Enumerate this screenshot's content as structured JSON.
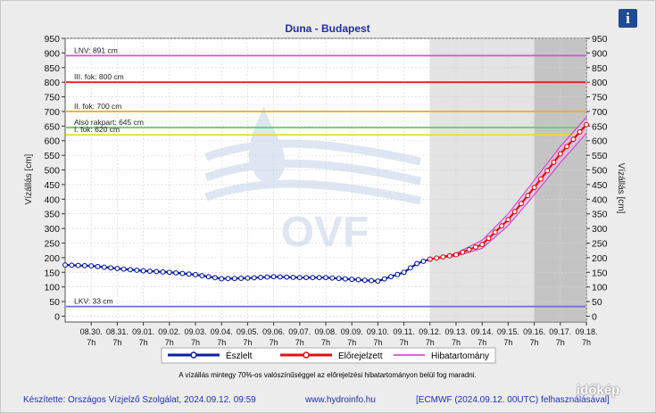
{
  "title": "Duna - Budapest",
  "ylabel_left": "Vízállás [cm]",
  "ylabel_right": "Vízállás [cm]",
  "note": "A vízállás mintegy 70%-os valószínűséggel az előrejelzési hibatartományon belül fog maradni.",
  "footer": {
    "left": "Készítette: Országos Vízjelző Szolgálat, 2024.09.12. 09:59",
    "middle": "www.hydroinfo.hu",
    "right": "[ECMWF (2024.09.12. 00UTC) felhasználásával]"
  },
  "credit": "időkép",
  "info_icon": "i",
  "watermark": "OVF",
  "legend": [
    {
      "label": "Észlelt",
      "color": "#0a1fa0"
    },
    {
      "label": "Előrejelzett",
      "color": "#e01010"
    },
    {
      "label": "Hibatartomány",
      "color": "#cc33cc"
    }
  ],
  "chart_data": {
    "type": "line",
    "title": "Duna - Budapest",
    "ylabel": "Vízállás [cm]",
    "ylim": [
      -20,
      950
    ],
    "yticks": [
      0,
      50,
      100,
      150,
      200,
      250,
      300,
      350,
      400,
      450,
      500,
      550,
      600,
      650,
      700,
      750,
      800,
      850,
      900,
      950
    ],
    "x_start": "2024-08-29 07:00",
    "x_end": "2024-09-18 07:00",
    "xticks": [
      {
        "date": "08.30.",
        "time": "7h"
      },
      {
        "date": "08.31.",
        "time": "7h"
      },
      {
        "date": "09.01.",
        "time": "7h"
      },
      {
        "date": "09.02.",
        "time": "7h"
      },
      {
        "date": "09.03.",
        "time": "7h"
      },
      {
        "date": "09.04.",
        "time": "7h"
      },
      {
        "date": "09.05.",
        "time": "7h"
      },
      {
        "date": "09.06.",
        "time": "7h"
      },
      {
        "date": "09.07.",
        "time": "7h"
      },
      {
        "date": "09.08.",
        "time": "7h"
      },
      {
        "date": "09.09.",
        "time": "7h"
      },
      {
        "date": "09.10.",
        "time": "7h"
      },
      {
        "date": "09.11.",
        "time": "7h"
      },
      {
        "date": "09.12.",
        "time": "7h"
      },
      {
        "date": "09.13.",
        "time": "7h"
      },
      {
        "date": "09.14.",
        "time": "7h"
      },
      {
        "date": "09.15.",
        "time": "7h"
      },
      {
        "date": "09.16.",
        "time": "7h"
      },
      {
        "date": "09.17.",
        "time": "7h"
      },
      {
        "date": "09.18.",
        "time": "7h"
      }
    ],
    "forecast_start": "2024-09-12 07:00",
    "late_forecast_start": "2024-09-16 07:00",
    "thresholds": [
      {
        "label": "LNV: 891 cm",
        "value": 891,
        "color": "#d84fd8"
      },
      {
        "label": "III. fok: 800 cm",
        "value": 800,
        "color": "#e02020"
      },
      {
        "label": "II. fok: 700 cm",
        "value": 700,
        "color": "#f0b020"
      },
      {
        "label": "Alsó rakpart: 645 cm",
        "value": 645,
        "color": "#60d060"
      },
      {
        "label": "I. fok: 620 cm",
        "value": 620,
        "color": "#e0e040"
      },
      {
        "label": "LKV: 33 cm",
        "value": 33,
        "color": "#6a6adf"
      }
    ],
    "series": [
      {
        "name": "Észlelt",
        "color": "#0a1fa0",
        "x": [
          "2024-08-29 07:00",
          "2024-08-30 07:00",
          "2024-08-31 07:00",
          "2024-09-01 07:00",
          "2024-09-02 07:00",
          "2024-09-03 07:00",
          "2024-09-04 07:00",
          "2024-09-05 07:00",
          "2024-09-06 07:00",
          "2024-09-07 07:00",
          "2024-09-08 07:00",
          "2024-09-09 07:00",
          "2024-09-10 07:00",
          "2024-09-11 07:00",
          "2024-09-11 19:00",
          "2024-09-12 07:00"
        ],
        "values": [
          175,
          172,
          163,
          155,
          150,
          142,
          128,
          130,
          135,
          132,
          132,
          126,
          120,
          150,
          180,
          195
        ]
      },
      {
        "name": "Előrejelzett",
        "color": "#e01010",
        "x": [
          "2024-09-12 07:00",
          "2024-09-13 07:00",
          "2024-09-14 07:00",
          "2024-09-15 07:00",
          "2024-09-16 07:00",
          "2024-09-17 07:00",
          "2024-09-18 07:00"
        ],
        "values": [
          195,
          210,
          245,
          330,
          440,
          555,
          655
        ]
      },
      {
        "name": "Hibatartomány",
        "color": "#cc33cc",
        "x": [
          "2024-09-12 07:00",
          "2024-09-13 07:00",
          "2024-09-14 07:00",
          "2024-09-15 07:00",
          "2024-09-16 07:00",
          "2024-09-17 07:00",
          "2024-09-18 07:00"
        ],
        "upper": [
          195,
          215,
          260,
          350,
          465,
          580,
          680
        ],
        "lower": [
          195,
          205,
          232,
          310,
          415,
          525,
          625
        ]
      }
    ]
  }
}
